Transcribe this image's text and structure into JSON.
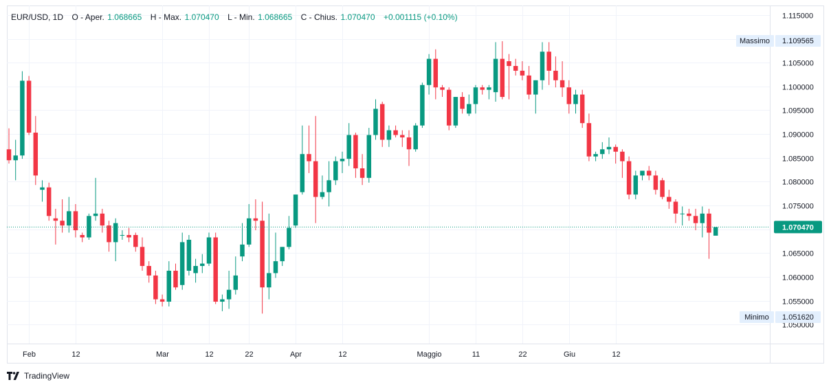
{
  "legend": {
    "symbol": "EUR/USD, 1D",
    "open_label": "O - Aper.",
    "open_value": "1.068665",
    "high_label": "H - Max.",
    "high_value": "1.070470",
    "low_label": "L - Min.",
    "low_value": "1.068665",
    "close_label": "C - Chius.",
    "close_value": "1.070470",
    "change": "+0.001115 (+0.10%)"
  },
  "badges": {
    "max_label": "Massimo",
    "max_value": "1.109565",
    "min_label": "Minimo",
    "min_value": "1.051620",
    "current_value": "1.070470"
  },
  "colors": {
    "up": "#089981",
    "down": "#f23645",
    "grid": "#f0f3fa",
    "current_line": "#089981"
  },
  "brand": {
    "name": "TradingView",
    "icon": "tradingview-logo-icon"
  },
  "chart_data": {
    "type": "candlestick",
    "ylim": [
      1.046,
      1.117
    ],
    "yticks": [
      "1.115000",
      "1.110000",
      "1.105000",
      "1.100000",
      "1.095000",
      "1.090000",
      "1.085000",
      "1.080000",
      "1.075000",
      "1.070000",
      "1.065000",
      "1.060000",
      "1.055000",
      "1.050000"
    ],
    "xtick_labels": [
      {
        "label": "Feb",
        "x": 3
      },
      {
        "label": "12",
        "x": 10
      },
      {
        "label": "Mar",
        "x": 23
      },
      {
        "label": "12",
        "x": 30
      },
      {
        "label": "22",
        "x": 36
      },
      {
        "label": "Apr",
        "x": 43
      },
      {
        "label": "12",
        "x": 50
      },
      {
        "label": "Maggio",
        "x": 63
      },
      {
        "label": "11",
        "x": 70
      },
      {
        "label": "22",
        "x": 77
      },
      {
        "label": "Giu",
        "x": 84
      },
      {
        "label": "12",
        "x": 91
      }
    ],
    "candles": [
      [
        1.0868,
        1.0912,
        1.0838,
        1.0845
      ],
      [
        1.0845,
        1.0888,
        1.0803,
        1.0855
      ],
      [
        1.0855,
        1.1032,
        1.0848,
        1.1012
      ],
      [
        1.1012,
        1.1022,
        1.0898,
        1.0903
      ],
      [
        1.0903,
        1.0938,
        1.0793,
        1.0813
      ],
      [
        1.0783,
        1.0803,
        1.0758,
        1.0788
      ],
      [
        1.0788,
        1.0798,
        1.0718,
        1.0728
      ],
      [
        1.0723,
        1.0743,
        1.0668,
        1.0718
      ],
      [
        1.0718,
        1.0763,
        1.0693,
        1.0708
      ],
      [
        1.0708,
        1.0768,
        1.0693,
        1.0738
      ],
      [
        1.0738,
        1.0753,
        1.0683,
        1.0698
      ],
      [
        1.0688,
        1.0693,
        1.0673,
        1.0683
      ],
      [
        1.0683,
        1.0733,
        1.0678,
        1.0728
      ],
      [
        1.0728,
        1.0808,
        1.0718,
        1.0733
      ],
      [
        1.0733,
        1.0743,
        1.0693,
        1.0708
      ],
      [
        1.0708,
        1.0718,
        1.0653,
        1.0673
      ],
      [
        1.0673,
        1.0723,
        1.0633,
        1.0713
      ],
      [
        1.0688,
        1.0698,
        1.0678,
        1.0688
      ],
      [
        1.0688,
        1.0703,
        1.0673,
        1.0683
      ],
      [
        1.0688,
        1.0693,
        1.0653,
        1.0663
      ],
      [
        1.0663,
        1.0683,
        1.0613,
        1.0623
      ],
      [
        1.0623,
        1.0633,
        1.0588,
        1.0603
      ],
      [
        1.0603,
        1.0613,
        1.0543,
        1.0553
      ],
      [
        1.0553,
        1.0563,
        1.0538,
        1.0548
      ],
      [
        1.0548,
        1.0633,
        1.0538,
        1.0613
      ],
      [
        1.0613,
        1.0628,
        1.0573,
        1.0578
      ],
      [
        1.0583,
        1.0693,
        1.0573,
        1.0673
      ],
      [
        1.0613,
        1.0688,
        1.0603,
        1.0678
      ],
      [
        1.0608,
        1.0638,
        1.0588,
        1.0623
      ],
      [
        1.0623,
        1.0648,
        1.0608,
        1.0628
      ],
      [
        1.0628,
        1.0693,
        1.0623,
        1.0683
      ],
      [
        1.0683,
        1.0693,
        1.0543,
        1.0548
      ],
      [
        1.0548,
        1.0563,
        1.0528,
        1.0553
      ],
      [
        1.0553,
        1.0613,
        1.0533,
        1.0573
      ],
      [
        1.0573,
        1.0643,
        1.0563,
        1.0603
      ],
      [
        1.0643,
        1.0713,
        1.0633,
        1.0668
      ],
      [
        1.0668,
        1.0753,
        1.0663,
        1.0723
      ],
      [
        1.0723,
        1.0763,
        1.0698,
        1.0718
      ],
      [
        1.0718,
        1.0758,
        1.0523,
        1.0578
      ],
      [
        1.0578,
        1.0733,
        1.0553,
        1.0608
      ],
      [
        1.0608,
        1.0693,
        1.0598,
        1.0633
      ],
      [
        1.0633,
        1.0663,
        1.0623,
        1.0663
      ],
      [
        1.0663,
        1.0728,
        1.0658,
        1.0703
      ],
      [
        1.0708,
        1.0773,
        1.0703,
        1.0773
      ],
      [
        1.0778,
        1.0918,
        1.0773,
        1.0858
      ],
      [
        1.0858,
        1.0918,
        1.0818,
        1.0843
      ],
      [
        1.0843,
        1.0938,
        1.0713,
        1.0768
      ],
      [
        1.0768,
        1.0813,
        1.0763,
        1.0778
      ],
      [
        1.0778,
        1.0843,
        1.0748,
        1.0803
      ],
      [
        1.0803,
        1.0853,
        1.0793,
        1.0843
      ],
      [
        1.0843,
        1.0863,
        1.0818,
        1.0848
      ],
      [
        1.0848,
        1.0923,
        1.0833,
        1.0898
      ],
      [
        1.0898,
        1.0903,
        1.0808,
        1.0828
      ],
      [
        1.0828,
        1.0858,
        1.0793,
        1.0808
      ],
      [
        1.0808,
        1.0913,
        1.0798,
        1.0898
      ],
      [
        1.0898,
        1.0973,
        1.0888,
        1.0953
      ],
      [
        1.0963,
        1.0968,
        1.0873,
        1.0888
      ],
      [
        1.0888,
        1.0918,
        1.0873,
        1.0908
      ],
      [
        1.0908,
        1.0918,
        1.0893,
        1.0898
      ],
      [
        1.0898,
        1.0908,
        1.0873,
        1.0893
      ],
      [
        1.0893,
        1.0908,
        1.0833,
        1.0868
      ],
      [
        1.0868,
        1.0923,
        1.0863,
        1.0918
      ],
      [
        1.0918,
        1.1008,
        1.0913,
        1.1003
      ],
      [
        1.1003,
        1.1068,
        1.0983,
        1.1058
      ],
      [
        1.1058,
        1.1078,
        1.0973,
        1.0998
      ],
      [
        1.0998,
        1.1003,
        1.0978,
        1.0993
      ],
      [
        1.0993,
        1.0998,
        1.0908,
        1.0918
      ],
      [
        1.0918,
        1.0978,
        1.0913,
        1.0978
      ],
      [
        1.0978,
        1.0988,
        1.0943,
        1.0953
      ],
      [
        1.0943,
        1.0983,
        1.0938,
        1.0963
      ],
      [
        1.0963,
        1.1003,
        1.0943,
        1.0998
      ],
      [
        1.0998,
        1.1003,
        1.0983,
        1.0993
      ],
      [
        1.0993,
        1.1003,
        1.0973,
        1.0998
      ],
      [
        1.0988,
        1.1093,
        1.0968,
        1.1058
      ],
      [
        1.1058,
        1.1095,
        1.0973,
        1.0978
      ],
      [
        1.1053,
        1.1068,
        1.0973,
        1.1043
      ],
      [
        1.1043,
        1.1058,
        1.1023,
        1.1033
      ],
      [
        1.1033,
        1.1053,
        1.1013,
        1.1023
      ],
      [
        1.1023,
        1.1043,
        1.0973,
        1.0983
      ],
      [
        1.0983,
        1.1013,
        1.0943,
        1.1013
      ],
      [
        1.1013,
        1.1093,
        1.0993,
        1.1073
      ],
      [
        1.1073,
        1.1093,
        1.1003,
        1.1033
      ],
      [
        1.1033,
        1.1063,
        1.0998,
        1.1013
      ],
      [
        1.1013,
        1.1053,
        1.0978,
        1.0998
      ],
      [
        1.0998,
        1.1013,
        1.0943,
        1.0963
      ],
      [
        1.0963,
        1.0993,
        1.0943,
        1.0983
      ],
      [
        1.0983,
        1.0993,
        1.0913,
        1.0923
      ],
      [
        1.0923,
        1.0943,
        1.0843,
        1.0853
      ],
      [
        1.0853,
        1.0863,
        1.0843,
        1.0858
      ],
      [
        1.0858,
        1.0883,
        1.0848,
        1.0868
      ],
      [
        1.0868,
        1.0893,
        1.0858,
        1.0873
      ],
      [
        1.0873,
        1.0878,
        1.0838,
        1.0863
      ],
      [
        1.0863,
        1.0868,
        1.0808,
        1.0843
      ],
      [
        1.0843,
        1.0853,
        1.0763,
        1.0773
      ],
      [
        1.0773,
        1.0823,
        1.0763,
        1.0813
      ],
      [
        1.0813,
        1.0823,
        1.0803,
        1.0823
      ],
      [
        1.0823,
        1.0833,
        1.0803,
        1.0813
      ],
      [
        1.0813,
        1.0823,
        1.0773,
        1.0783
      ],
      [
        1.0803,
        1.0808,
        1.0763,
        1.0768
      ],
      [
        1.0768,
        1.0783,
        1.0743,
        1.0758
      ],
      [
        1.0758,
        1.0763,
        1.0713,
        1.0733
      ],
      [
        1.0733,
        1.0748,
        1.0708,
        1.0733
      ],
      [
        1.0733,
        1.0743,
        1.0718,
        1.0728
      ],
      [
        1.0728,
        1.0743,
        1.0698,
        1.0713
      ],
      [
        1.0713,
        1.0748,
        1.0683,
        1.0733
      ],
      [
        1.0733,
        1.0743,
        1.0638,
        1.0693
      ],
      [
        1.068665,
        1.07047,
        1.068665,
        1.07047
      ]
    ]
  }
}
